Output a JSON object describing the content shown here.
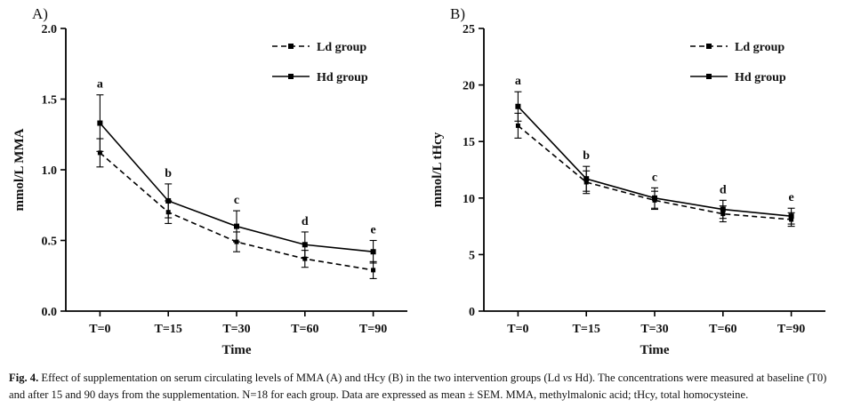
{
  "panels": [
    {
      "label": "A)"
    },
    {
      "label": "B)"
    }
  ],
  "caption": {
    "prefix": "Fig. 4.",
    "body_before_vs": " Effect of supplementation on serum circulating levels of MMA (A) and tHcy (B) in the two intervention groups (Ld ",
    "vs": "vs",
    "body_after_vs": " Hd). The concentrations were measured at baseline (T0) and after 15 and 90 days from the supplementation. N=18 for each group. Data are expressed as mean ± SEM. MMA, methylmalonic acid; tHcy, total homocysteine."
  },
  "colors": {
    "line": "#000000",
    "background": "#ffffff"
  },
  "chart_data": [
    {
      "type": "line",
      "panel": "A",
      "categories": [
        "T=0",
        "T=15",
        "T=30",
        "T=60",
        "T=90"
      ],
      "xlabel": "Time",
      "ylabel": "mmol/L MMA",
      "ylim": [
        0,
        2.0
      ],
      "yticks": [
        0.0,
        0.5,
        1.0,
        1.5,
        2.0
      ],
      "ytick_decimals": 1,
      "grid": false,
      "legend_position": "top-right",
      "series": [
        {
          "name": "Ld group",
          "style": "dashed",
          "color": "#000000",
          "values": [
            1.12,
            0.7,
            0.49,
            0.37,
            0.29
          ],
          "sem": [
            0.1,
            0.08,
            0.07,
            0.06,
            0.06
          ]
        },
        {
          "name": "Hd group",
          "style": "solid",
          "color": "#000000",
          "values": [
            1.33,
            0.78,
            0.6,
            0.47,
            0.42
          ],
          "sem": [
            0.2,
            0.12,
            0.11,
            0.09,
            0.08
          ]
        }
      ],
      "annotations": [
        "a",
        "b",
        "c",
        "d",
        "e"
      ]
    },
    {
      "type": "line",
      "panel": "B",
      "categories": [
        "T=0",
        "T=15",
        "T=30",
        "T=60",
        "T=90"
      ],
      "xlabel": "Time",
      "ylabel": "mmol/L tHcy",
      "ylim": [
        0,
        25
      ],
      "yticks": [
        0,
        5,
        10,
        15,
        20,
        25
      ],
      "ytick_decimals": 0,
      "grid": false,
      "legend_position": "top-right",
      "series": [
        {
          "name": "Ld group",
          "style": "dashed",
          "color": "#000000",
          "values": [
            16.4,
            11.4,
            9.8,
            8.6,
            8.1
          ],
          "sem": [
            1.1,
            1.0,
            0.8,
            0.7,
            0.6
          ]
        },
        {
          "name": "Hd group",
          "style": "solid",
          "color": "#000000",
          "values": [
            18.1,
            11.7,
            10.0,
            9.0,
            8.4
          ],
          "sem": [
            1.3,
            1.1,
            0.9,
            0.8,
            0.7
          ]
        }
      ],
      "annotations": [
        "a",
        "b",
        "c",
        "d",
        "e"
      ]
    }
  ]
}
